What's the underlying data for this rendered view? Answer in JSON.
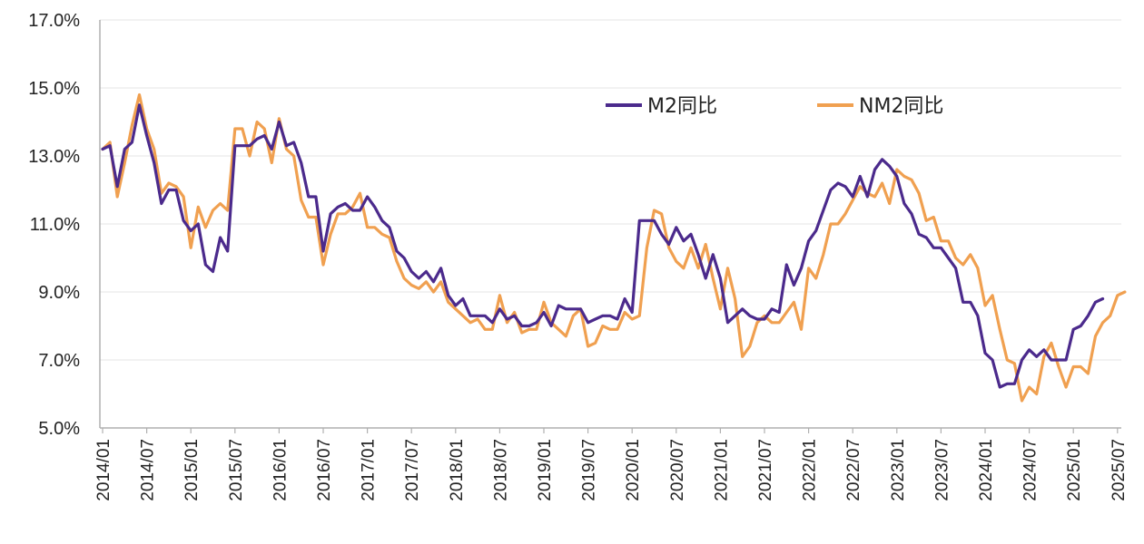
{
  "chart_data": {
    "type": "line",
    "title": "",
    "xlabel": "",
    "ylabel": "",
    "ylim": [
      5.0,
      17.0
    ],
    "y_ticks": [
      "5.0%",
      "7.0%",
      "9.0%",
      "11.0%",
      "13.0%",
      "15.0%",
      "17.0%"
    ],
    "x_ticks": [
      "2014/01",
      "2014/07",
      "2015/01",
      "2015/07",
      "2016/01",
      "2016/07",
      "2017/01",
      "2017/07",
      "2018/01",
      "2018/07",
      "2019/01",
      "2019/07",
      "2020/01",
      "2020/07",
      "2021/01",
      "2021/07",
      "2022/01",
      "2022/07",
      "2023/01",
      "2023/07",
      "2024/01",
      "2024/07",
      "2025/01",
      "2025/07"
    ],
    "legend_position": "top-right",
    "colors": {
      "m2": "#4b2a8c",
      "nm2": "#f0a050",
      "axis": "#b0b0b0"
    },
    "series": [
      {
        "name": "M2同比",
        "values": [
          13.2,
          13.3,
          12.1,
          13.2,
          13.4,
          14.5,
          13.6,
          12.8,
          11.6,
          12.0,
          12.0,
          11.1,
          10.8,
          11.0,
          9.8,
          9.6,
          10.6,
          10.2,
          13.3,
          13.3,
          13.3,
          13.5,
          13.6,
          13.2,
          14.0,
          13.3,
          13.4,
          12.8,
          11.8,
          11.8,
          10.2,
          11.3,
          11.5,
          11.6,
          11.4,
          11.4,
          11.8,
          11.5,
          11.1,
          10.9,
          10.2,
          10.0,
          9.6,
          9.4,
          9.6,
          9.3,
          9.7,
          8.9,
          8.6,
          8.8,
          8.3,
          8.3,
          8.3,
          8.1,
          8.5,
          8.2,
          8.3,
          8.0,
          8.0,
          8.1,
          8.4,
          8.0,
          8.6,
          8.5,
          8.5,
          8.5,
          8.1,
          8.2,
          8.3,
          8.3,
          8.2,
          8.8,
          8.4,
          11.1,
          11.1,
          11.1,
          10.7,
          10.4,
          10.9,
          10.5,
          10.7,
          10.1,
          9.4,
          10.1,
          9.4,
          8.1,
          8.3,
          8.5,
          8.3,
          8.2,
          8.2,
          8.5,
          8.4,
          9.8,
          9.2,
          9.7,
          10.5,
          10.8,
          11.4,
          12.0,
          12.2,
          12.1,
          11.8,
          12.4,
          11.8,
          12.6,
          12.9,
          12.7,
          12.4,
          11.6,
          11.3,
          10.7,
          10.6,
          10.3,
          10.3,
          10.0,
          9.7,
          8.7,
          8.7,
          8.3,
          7.2,
          7.0,
          6.2,
          6.3,
          6.3,
          7.0,
          7.3,
          7.1,
          7.3,
          7.0,
          7.0,
          7.0,
          7.9,
          8.0,
          8.3,
          8.7,
          8.8
        ]
      },
      {
        "name": "NM2同比",
        "values": [
          13.2,
          13.4,
          11.8,
          12.8,
          13.9,
          14.8,
          13.8,
          13.2,
          11.9,
          12.2,
          12.1,
          11.8,
          10.3,
          11.5,
          10.9,
          11.4,
          11.6,
          11.4,
          13.8,
          13.8,
          13.0,
          14.0,
          13.8,
          12.8,
          14.1,
          13.2,
          13.0,
          11.7,
          11.2,
          11.2,
          9.8,
          10.7,
          11.3,
          11.3,
          11.5,
          11.9,
          10.9,
          10.9,
          10.7,
          10.6,
          9.9,
          9.4,
          9.2,
          9.1,
          9.3,
          9.0,
          9.3,
          8.7,
          8.5,
          8.3,
          8.1,
          8.2,
          7.9,
          7.9,
          8.9,
          8.1,
          8.4,
          7.8,
          7.9,
          7.9,
          8.7,
          8.1,
          7.9,
          7.7,
          8.3,
          8.5,
          7.4,
          7.5,
          8.0,
          7.9,
          7.9,
          8.4,
          8.2,
          8.3,
          10.3,
          11.4,
          11.3,
          10.3,
          9.9,
          9.7,
          10.3,
          9.7,
          10.4,
          9.4,
          8.5,
          9.7,
          8.8,
          7.1,
          7.4,
          8.1,
          8.3,
          8.1,
          8.1,
          8.4,
          8.7,
          7.9,
          9.7,
          9.4,
          10.1,
          11.0,
          11.0,
          11.3,
          11.7,
          12.1,
          11.9,
          11.8,
          12.2,
          11.6,
          12.6,
          12.4,
          12.3,
          11.9,
          11.1,
          11.2,
          10.5,
          10.5,
          10.0,
          9.8,
          10.1,
          9.7,
          8.6,
          8.9,
          7.9,
          7.0,
          6.9,
          5.8,
          6.2,
          6.0,
          7.1,
          7.5,
          6.8,
          6.2,
          6.8,
          6.8,
          6.6,
          7.7,
          8.1,
          8.3,
          8.9,
          9.0
        ]
      }
    ]
  }
}
